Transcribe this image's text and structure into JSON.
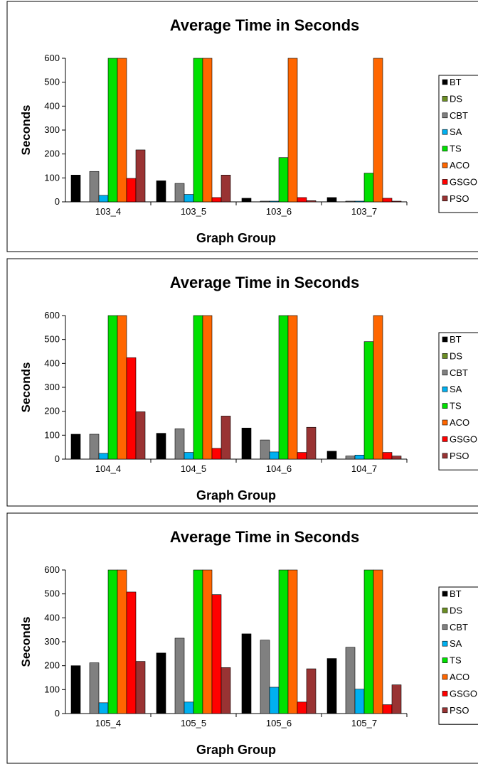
{
  "series_colors": [
    "#000000",
    "#6b8e23",
    "#808080",
    "#00b0f0",
    "#00e000",
    "#ff6600",
    "#ff0000",
    "#993333"
  ],
  "chart_data": [
    {
      "type": "bar",
      "title": "Average Time in Seconds",
      "xlabel": "Graph Group",
      "ylabel": "Seconds",
      "ylim": [
        0,
        600
      ],
      "yticks": [
        "0",
        "100",
        "200",
        "300",
        "400",
        "500",
        "600"
      ],
      "categories": [
        "103_4",
        "103_5",
        "103_6",
        "103_7"
      ],
      "legend_placement": "right",
      "series": [
        {
          "name": "BT",
          "values": [
            112,
            88,
            15,
            18
          ]
        },
        {
          "name": "DS",
          "values": [
            0,
            0,
            0,
            0
          ]
        },
        {
          "name": "CBT",
          "values": [
            127,
            77,
            2,
            2
          ]
        },
        {
          "name": "SA",
          "values": [
            27,
            31,
            1,
            2
          ]
        },
        {
          "name": "TS",
          "values": [
            600,
            600,
            185,
            120
          ]
        },
        {
          "name": "ACO",
          "values": [
            600,
            600,
            600,
            600
          ]
        },
        {
          "name": "GSGO",
          "values": [
            98,
            18,
            18,
            15
          ]
        },
        {
          "name": "PSO",
          "values": [
            217,
            112,
            5,
            3
          ]
        }
      ]
    },
    {
      "type": "bar",
      "title": "Average Time in Seconds",
      "xlabel": "Graph Group",
      "ylabel": "Seconds",
      "ylim": [
        0,
        600
      ],
      "yticks": [
        "0",
        "100",
        "200",
        "300",
        "400",
        "500",
        "600"
      ],
      "categories": [
        "104_4",
        "104_5",
        "104_6",
        "104_7"
      ],
      "legend_placement": "right",
      "series": [
        {
          "name": "BT",
          "values": [
            104,
            108,
            130,
            33
          ]
        },
        {
          "name": "DS",
          "values": [
            0,
            0,
            0,
            0
          ]
        },
        {
          "name": "CBT",
          "values": [
            104,
            127,
            80,
            13
          ]
        },
        {
          "name": "SA",
          "values": [
            24,
            28,
            30,
            17
          ]
        },
        {
          "name": "TS",
          "values": [
            600,
            600,
            600,
            491
          ]
        },
        {
          "name": "ACO",
          "values": [
            600,
            600,
            600,
            600
          ]
        },
        {
          "name": "GSGO",
          "values": [
            424,
            45,
            28,
            28
          ]
        },
        {
          "name": "PSO",
          "values": [
            198,
            180,
            133,
            13
          ]
        }
      ]
    },
    {
      "type": "bar",
      "title": "Average Time in Seconds",
      "xlabel": "Graph Group",
      "ylabel": "Seconds",
      "ylim": [
        0,
        600
      ],
      "yticks": [
        "0",
        "100",
        "200",
        "300",
        "400",
        "500",
        "600"
      ],
      "categories": [
        "105_4",
        "105_5",
        "105_6",
        "105_7"
      ],
      "legend_placement": "right",
      "series": [
        {
          "name": "BT",
          "values": [
            200,
            253,
            333,
            230
          ]
        },
        {
          "name": "DS",
          "values": [
            0,
            0,
            0,
            0
          ]
        },
        {
          "name": "CBT",
          "values": [
            212,
            315,
            307,
            277
          ]
        },
        {
          "name": "SA",
          "values": [
            45,
            48,
            110,
            102
          ]
        },
        {
          "name": "TS",
          "values": [
            600,
            600,
            600,
            600
          ]
        },
        {
          "name": "ACO",
          "values": [
            600,
            600,
            600,
            600
          ]
        },
        {
          "name": "GSGO",
          "values": [
            508,
            497,
            48,
            37
          ]
        },
        {
          "name": "PSO",
          "values": [
            218,
            192,
            187,
            120
          ]
        }
      ]
    }
  ]
}
